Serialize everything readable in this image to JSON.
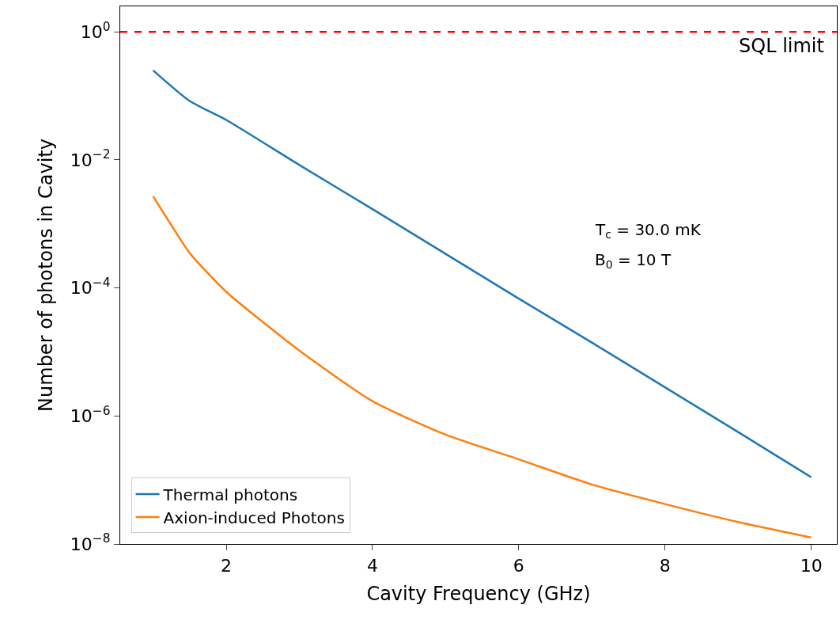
{
  "chart_data": {
    "type": "line",
    "xlabel": "Cavity Frequency (GHz)",
    "ylabel": "Number of photons in Cavity",
    "series": [
      {
        "name": "Thermal photons",
        "color": "#1f77b4",
        "x": [
          1,
          1.5,
          2,
          3,
          4,
          5,
          6,
          7,
          8,
          9,
          10
        ],
        "values": [
          0.25,
          0.083,
          0.042,
          0.0083,
          0.0017,
          0.00034,
          6.8e-05,
          1.4e-05,
          2.8e-06,
          5.6e-07,
          1.1e-07
        ]
      },
      {
        "name": "Axion-induced Photons",
        "color": "#ff7f0e",
        "x": [
          1,
          1.25,
          1.5,
          2,
          3,
          4,
          5,
          6,
          7,
          8,
          9,
          10
        ],
        "values": [
          0.0027,
          0.00095,
          0.00035,
          8.7e-05,
          1.05e-05,
          1.7e-06,
          5.1e-07,
          2.1e-07,
          8.5e-08,
          4.2e-08,
          2.2e-08,
          1.26e-08
        ]
      }
    ],
    "log": "y",
    "xlim": [
      0.55,
      10.35
    ],
    "ylim": [
      1e-08,
      2.5
    ],
    "xticks": [
      2,
      4,
      6,
      8,
      10
    ],
    "yticks": [
      {
        "value": 1e-08,
        "label": "10$^{−8}$"
      },
      {
        "value": 1e-06,
        "label": "10$^{−6}$"
      },
      {
        "value": 0.0001,
        "label": "10$^{−4}$"
      },
      {
        "value": 0.01,
        "label": "10$^{−2}$"
      },
      {
        "value": 1,
        "label": "10$^{0}$"
      }
    ],
    "ref_lines": [
      {
        "axis": "y",
        "value": 1,
        "label": "SQL limit",
        "color": "#ff0000",
        "line_style": "dashed"
      }
    ],
    "annotations": [
      "T$_{c}$ = 30.0 mK",
      "B$_{0}$ = 10 T"
    ],
    "legend": "bottom left"
  }
}
